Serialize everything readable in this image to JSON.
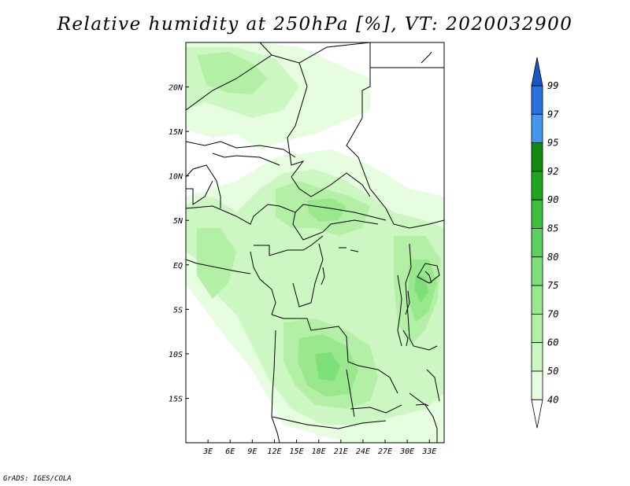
{
  "title": "Relative humidity at 250hPa [%], VT: 2020032900",
  "credit": "GrADS: IGES/COLA",
  "map": {
    "lat_ticks": [
      {
        "label": "20N",
        "lat": 20
      },
      {
        "label": "15N",
        "lat": 15
      },
      {
        "label": "10N",
        "lat": 10
      },
      {
        "label": "5N",
        "lat": 5
      },
      {
        "label": "EQ",
        "lat": 0
      },
      {
        "label": "5S",
        "lat": -5
      },
      {
        "label": "10S",
        "lat": -10
      },
      {
        "label": "15S",
        "lat": -15
      }
    ],
    "lon_ticks": [
      {
        "label": "3E",
        "lon": 3
      },
      {
        "label": "6E",
        "lon": 6
      },
      {
        "label": "9E",
        "lon": 9
      },
      {
        "label": "12E",
        "lon": 12
      },
      {
        "label": "15E",
        "lon": 15
      },
      {
        "label": "18E",
        "lon": 18
      },
      {
        "label": "21E",
        "lon": 21
      },
      {
        "label": "24E",
        "lon": 24
      },
      {
        "label": "27E",
        "lon": 27
      },
      {
        "label": "30E",
        "lon": 30
      },
      {
        "label": "33E",
        "lon": 33
      }
    ],
    "lon_range": [
      0,
      35
    ],
    "lat_range": [
      -20,
      25
    ]
  },
  "colorbar": {
    "levels": [
      "40",
      "50",
      "60",
      "70",
      "75",
      "80",
      "85",
      "90",
      "92",
      "95",
      "97",
      "99"
    ],
    "colors": [
      "#ffffff",
      "#e6fde0",
      "#cdf7c2",
      "#b3f0a5",
      "#9ae88d",
      "#7ee07a",
      "#5cd05c",
      "#3cbf3c",
      "#1fa51f",
      "#0f8a0f",
      "#4497ee",
      "#2873dd",
      "#1a56c4"
    ]
  }
}
